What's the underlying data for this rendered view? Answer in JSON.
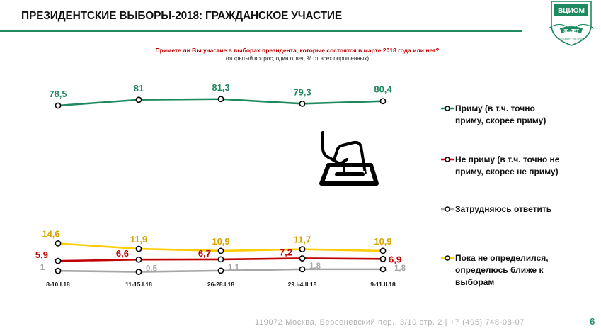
{
  "header": {
    "title": "ПРЕЗИДЕНТСКИЕ ВЫБОРЫ-2018: ГРАЖДАНСКОЕ УЧАСТИЕ"
  },
  "logo": {
    "name": "ВЦИОМ",
    "years": "30 ЛЕТ",
    "since": "ОСНОВАН · 1987 ГОДУ"
  },
  "chart_data": {
    "type": "line",
    "title": "Примете ли Вы участие в выборах президента, которые состоятся в марте 2018 года или нет?",
    "subtitle": "(открытый вопрос, один ответ, % от всех опрошенных)",
    "categories": [
      "8-10.I.18",
      "11-15.I.18",
      "26-28.I.18",
      "29.I-4.II.18",
      "9-11.II.18"
    ],
    "series": [
      {
        "name": "Приму (в т.ч. точно приму, скорее приму)",
        "color": "#1f8a5f",
        "values": [
          78.5,
          81,
          81.3,
          79.3,
          80.4
        ],
        "labels": [
          "78,5",
          "81",
          "81,3",
          "79,3",
          "80,4"
        ]
      },
      {
        "name": "Не приму (в т.ч. точно не приму, скорее не приму)",
        "color": "#c00000",
        "values": [
          5.9,
          6.6,
          6.7,
          7.2,
          6.9
        ],
        "labels": [
          "5,9",
          "6,6",
          "6,7",
          "7,2",
          "6,9"
        ]
      },
      {
        "name": "Затрудняюсь ответить",
        "color": "#a6a6a6",
        "values": [
          1,
          0.5,
          1.1,
          1.8,
          1.8
        ],
        "labels": [
          "1",
          "0,5",
          "1,1",
          "1,8",
          "1,8"
        ]
      },
      {
        "name": "Пока не определился, определюсь ближе к выборам",
        "color": "#ffcc00",
        "values": [
          14.6,
          11.9,
          10.9,
          11.7,
          10.9
        ],
        "labels": [
          "14,6",
          "11,9",
          "10,9",
          "11,7",
          "10,9"
        ]
      }
    ],
    "label_colors": {
      "Приму (в т.ч. точно приму, скорее приму)": "#1f8a5f",
      "Не приму (в т.ч. точно не приму, скорее не приму)": "#c00000",
      "Затрудняюсь ответить": "#a6a6a6",
      "Пока не определился, определюсь ближе к выборам": "#d4a500"
    },
    "legend_position": "right",
    "grid": false
  },
  "legend": {
    "items": [
      {
        "line1": "Приму (в т.ч. точно",
        "line2": "приму, скорее приму)"
      },
      {
        "line1": "Не приму (в т.ч. точно не",
        "line2": "приму, скорее не приму)"
      },
      {
        "line1": "Затрудняюсь ответить",
        "line2": ""
      },
      {
        "line1": "Пока не определился,",
        "line2": "определюсь ближе к",
        "line3": "выборам"
      }
    ]
  },
  "icons": {
    "ballot": "ballot-box-icon"
  },
  "footer": {
    "address": "119072 Москва, Берсеневский пер., 3/10 стр. 2  |  +7 (495) 748-08-07",
    "page": "6"
  }
}
